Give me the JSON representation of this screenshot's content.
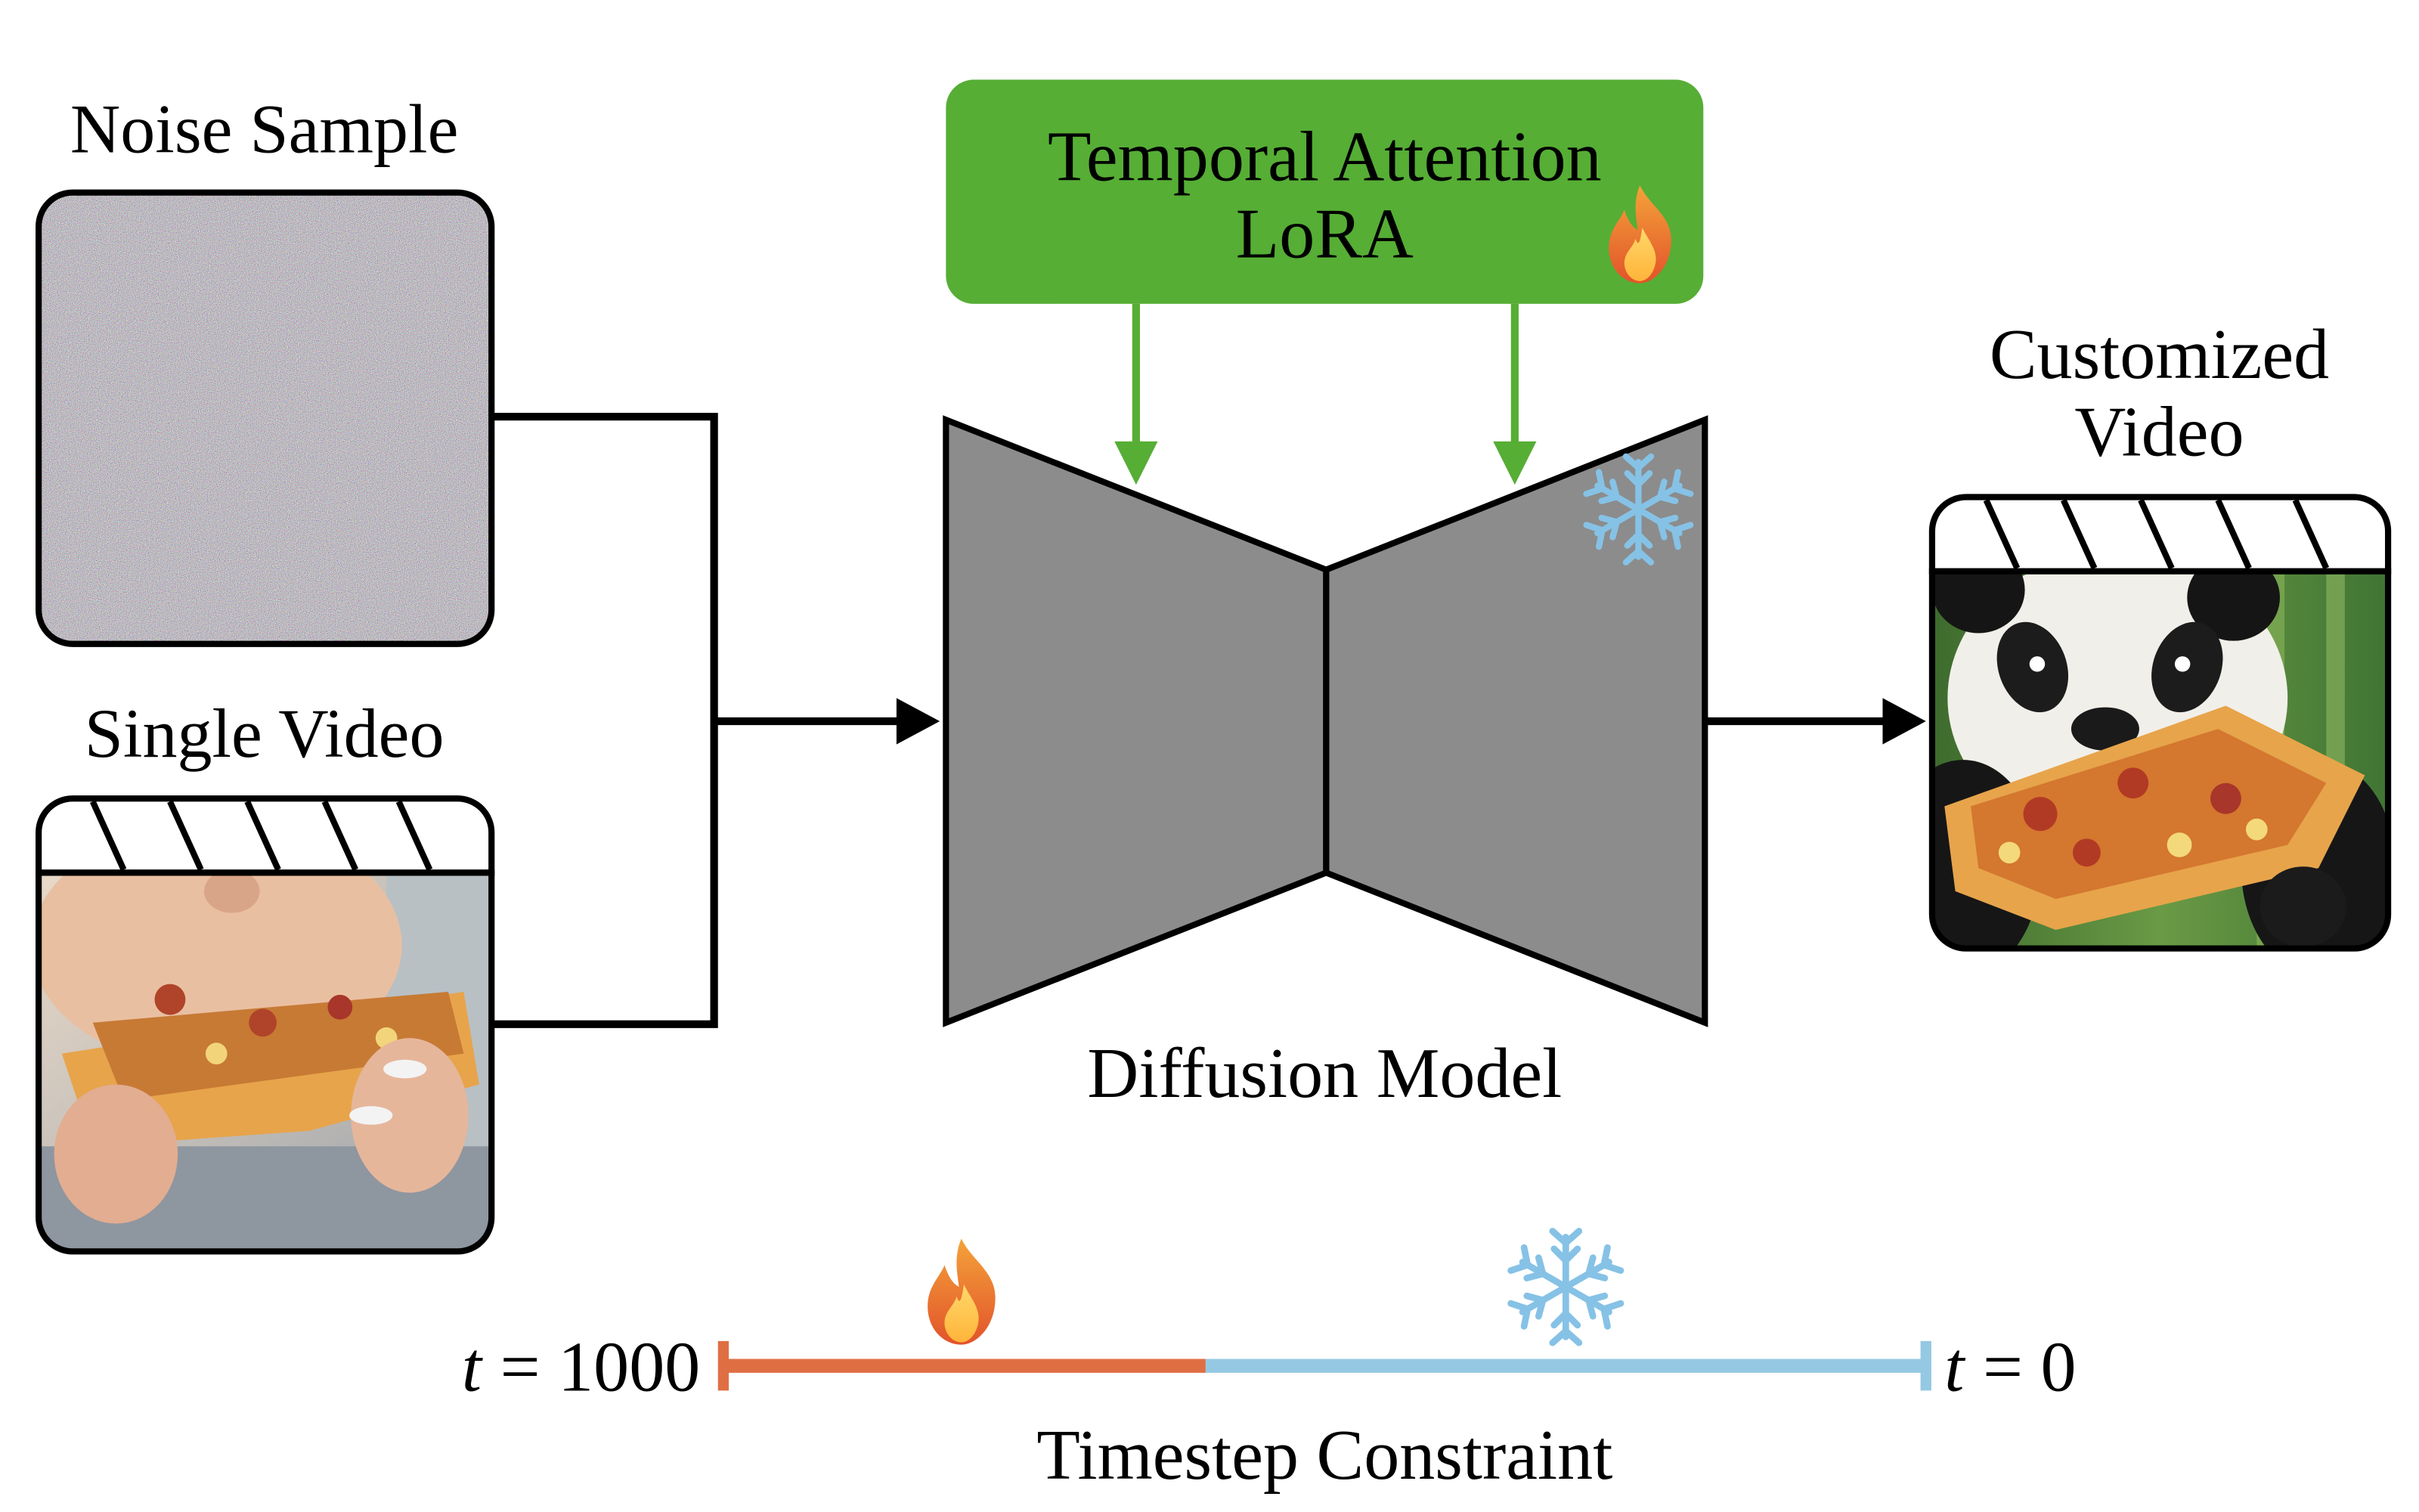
{
  "inputs": {
    "noise_label": "Noise Sample",
    "video_label": "Single Video"
  },
  "lora_box": {
    "line1": "Temporal Attention",
    "line2": "LoRA",
    "status_icon": "fire-icon",
    "color": "#56ae35"
  },
  "model": {
    "label": "Diffusion Model",
    "status_icon": "snowflake-icon",
    "color": "#8c8c8c"
  },
  "output": {
    "line1": "Customized",
    "line2": "Video"
  },
  "timestep": {
    "label": "Timestep Constraint",
    "start_var": "t",
    "start_value": "= 1000",
    "end_var": "t",
    "end_value": "= 0",
    "trained_color": "#e06e43",
    "frozen_color": "#95c8e3",
    "trained_icon": "fire-icon",
    "frozen_icon": "snowflake-icon"
  },
  "colors": {
    "arrow_green": "#56ae35",
    "snowflake": "#86c2e6"
  }
}
